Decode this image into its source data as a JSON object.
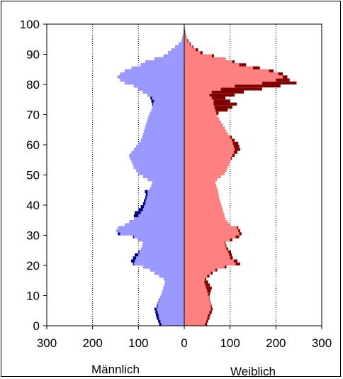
{
  "chart_data": {
    "type": "bar",
    "orientation": "horizontal-population-pyramid",
    "y_axis": {
      "range": [
        0,
        100
      ],
      "ticks": [
        0,
        10,
        20,
        30,
        40,
        50,
        60,
        70,
        80,
        90,
        100
      ]
    },
    "x_axis": {
      "range": [
        -300,
        300
      ],
      "ticks": [
        300,
        200,
        100,
        0,
        100,
        200,
        300
      ]
    },
    "grid": "vertical-dotted",
    "xlabel_left": "Männlich",
    "xlabel_right": "Weiblich",
    "colors": {
      "male_fill": "#9999ff",
      "male_outline": "#000080",
      "female_fill": "#ff8080",
      "female_outline": "#800000"
    },
    "series": [
      {
        "side": "male",
        "ages": [
          0,
          1,
          2,
          3,
          4,
          5,
          6,
          7,
          8,
          9,
          10,
          11,
          12,
          13,
          14,
          15,
          16,
          17,
          18,
          19,
          20,
          21,
          22,
          23,
          24,
          25,
          26,
          27,
          28,
          29,
          30,
          31,
          32,
          33,
          34,
          35,
          36,
          37,
          38,
          39,
          40,
          41,
          42,
          43,
          44,
          45,
          46,
          47,
          48,
          49,
          50,
          51,
          52,
          53,
          54,
          55,
          56,
          57,
          58,
          59,
          60,
          61,
          62,
          63,
          64,
          65,
          66,
          67,
          68,
          69,
          70,
          71,
          72,
          73,
          74,
          75,
          76,
          77,
          78,
          79,
          80,
          81,
          82,
          83,
          84,
          85,
          86,
          87,
          88,
          89,
          90,
          91,
          92,
          93,
          94,
          95,
          96,
          97,
          98,
          99,
          100
        ],
        "values_fill": [
          50,
          52,
          55,
          56,
          58,
          60,
          58,
          57,
          55,
          53,
          50,
          48,
          46,
          44,
          42,
          45,
          55,
          65,
          75,
          90,
          110,
          108,
          105,
          100,
          98,
          95,
          92,
          90,
          100,
          110,
          140,
          148,
          145,
          130,
          120,
          110,
          100,
          95,
          90,
          88,
          85,
          84,
          82,
          80,
          80,
          75,
          72,
          70,
          80,
          90,
          100,
          105,
          110,
          112,
          115,
          118,
          120,
          115,
          110,
          105,
          100,
          95,
          92,
          90,
          88,
          86,
          84,
          82,
          80,
          78,
          75,
          72,
          70,
          68,
          66,
          70,
          80,
          90,
          100,
          110,
          130,
          140,
          145,
          140,
          130,
          115,
          95,
          85,
          65,
          45,
          35,
          28,
          20,
          12,
          6,
          4,
          2,
          1,
          1,
          0,
          0
        ],
        "values_outline": [
          55,
          57,
          60,
          62,
          63,
          65,
          60,
          58,
          56,
          52,
          48,
          46,
          45,
          43,
          40,
          44,
          52,
          60,
          70,
          88,
          112,
          116,
          112,
          108,
          100,
          80,
          85,
          90,
          100,
          112,
          145,
          148,
          140,
          128,
          118,
          105,
          110,
          108,
          100,
          95,
          90,
          88,
          85,
          84,
          86,
          75,
          68,
          62,
          70,
          80,
          95,
          104,
          110,
          112,
          115,
          118,
          120,
          115,
          108,
          100,
          92,
          85,
          80,
          78,
          76,
          74,
          72,
          70,
          68,
          66,
          65,
          66,
          68,
          70,
          72,
          74,
          80,
          90,
          100,
          110,
          130,
          140,
          145,
          140,
          130,
          115,
          95,
          85,
          65,
          45,
          35,
          28,
          20,
          12,
          6,
          4,
          2,
          1,
          1,
          0,
          0
        ]
      },
      {
        "side": "female",
        "ages": [
          0,
          1,
          2,
          3,
          4,
          5,
          6,
          7,
          8,
          9,
          10,
          11,
          12,
          13,
          14,
          15,
          16,
          17,
          18,
          19,
          20,
          21,
          22,
          23,
          24,
          25,
          26,
          27,
          28,
          29,
          30,
          31,
          32,
          33,
          34,
          35,
          36,
          37,
          38,
          39,
          40,
          41,
          42,
          43,
          44,
          45,
          46,
          47,
          48,
          49,
          50,
          51,
          52,
          53,
          54,
          55,
          56,
          57,
          58,
          59,
          60,
          61,
          62,
          63,
          64,
          65,
          66,
          67,
          68,
          69,
          70,
          71,
          72,
          73,
          74,
          75,
          76,
          77,
          78,
          79,
          80,
          81,
          82,
          83,
          84,
          85,
          86,
          87,
          88,
          89,
          90,
          91,
          92,
          93,
          94,
          95,
          96,
          97,
          98,
          99,
          100
        ],
        "values_fill": [
          45,
          48,
          50,
          52,
          55,
          58,
          58,
          57,
          55,
          54,
          52,
          50,
          48,
          46,
          44,
          45,
          50,
          58,
          68,
          88,
          112,
          108,
          100,
          98,
          96,
          92,
          90,
          88,
          100,
          112,
          120,
          118,
          115,
          100,
          95,
          90,
          88,
          86,
          84,
          82,
          80,
          78,
          76,
          75,
          74,
          72,
          70,
          68,
          72,
          80,
          88,
          92,
          95,
          98,
          100,
          102,
          105,
          108,
          110,
          108,
          106,
          104,
          100,
          96,
          92,
          88,
          84,
          80,
          76,
          72,
          70,
          68,
          66,
          64,
          64,
          60,
          55,
          60,
          80,
          110,
          170,
          200,
          215,
          205,
          185,
          150,
          120,
          105,
          90,
          60,
          35,
          25,
          18,
          12,
          7,
          4,
          2,
          1,
          1,
          0,
          0
        ],
        "values_outline": [
          50,
          52,
          55,
          57,
          60,
          62,
          60,
          58,
          56,
          55,
          56,
          58,
          60,
          56,
          52,
          48,
          55,
          62,
          72,
          92,
          122,
          116,
          106,
          104,
          102,
          96,
          92,
          90,
          105,
          120,
          125,
          122,
          118,
          100,
          90,
          85,
          80,
          78,
          76,
          74,
          72,
          70,
          70,
          68,
          68,
          70,
          66,
          62,
          68,
          78,
          86,
          92,
          95,
          98,
          100,
          104,
          110,
          116,
          122,
          120,
          118,
          110,
          104,
          96,
          92,
          88,
          84,
          80,
          76,
          72,
          75,
          95,
          105,
          115,
          100,
          90,
          110,
          130,
          170,
          210,
          245,
          230,
          225,
          215,
          195,
          165,
          135,
          110,
          90,
          65,
          40,
          30,
          20,
          14,
          9,
          5,
          3,
          2,
          1,
          0,
          0
        ]
      }
    ]
  }
}
